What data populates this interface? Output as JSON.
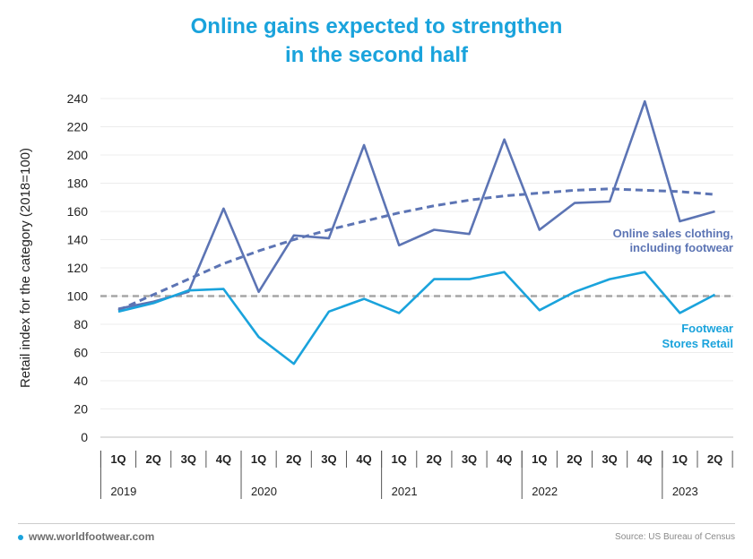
{
  "title_line1": "Online gains expected to strengthen",
  "title_line2": "in the second half",
  "footer": {
    "website": "www.worldfootwear.com",
    "source": "Source: US Bureau of Census"
  },
  "colors": {
    "title": "#1aa3dc",
    "online": "#5c74b4",
    "footwear": "#1aa3dc",
    "reference": "#a5a5a5"
  },
  "chart_data": {
    "type": "line",
    "ylabel": "Retail index for the category (2018=100)",
    "xlabel": "",
    "ylim": [
      0,
      240
    ],
    "yticks": [
      0,
      20,
      40,
      60,
      80,
      100,
      120,
      140,
      160,
      180,
      200,
      220,
      240
    ],
    "grid": true,
    "categories": [
      "1Q",
      "2Q",
      "3Q",
      "4Q",
      "1Q",
      "2Q",
      "3Q",
      "4Q",
      "1Q",
      "2Q",
      "3Q",
      "4Q",
      "1Q",
      "2Q",
      "3Q",
      "4Q",
      "1Q",
      "2Q"
    ],
    "years": [
      {
        "label": "2019",
        "quarters": 4
      },
      {
        "label": "2020",
        "quarters": 4
      },
      {
        "label": "2021",
        "quarters": 4
      },
      {
        "label": "2022",
        "quarters": 4
      },
      {
        "label": "2023",
        "quarters": 2
      }
    ],
    "series": [
      {
        "name": "Online sales clothing, including footwear",
        "label_lines": [
          "Online sales clothing,",
          "including footwear"
        ],
        "values": [
          91,
          96,
          103,
          162,
          103,
          143,
          141,
          207,
          136,
          147,
          144,
          211,
          147,
          166,
          167,
          238,
          153,
          160
        ]
      },
      {
        "name": "Footwear Stores Retail",
        "label_lines": [
          "Footwear",
          "Stores Retail"
        ],
        "values": [
          89,
          95,
          104,
          105,
          71,
          52,
          89,
          98,
          88,
          112,
          112,
          117,
          90,
          103,
          112,
          117,
          88,
          101
        ]
      }
    ],
    "trendline": {
      "series": "Online sales clothing, including footwear",
      "style": "dashed",
      "values": [
        90,
        101,
        112,
        123,
        132,
        140,
        147,
        153,
        159,
        164,
        168,
        171,
        173,
        175,
        176,
        175,
        174,
        172
      ]
    },
    "reference_line": {
      "value": 100,
      "style": "dashed"
    }
  }
}
